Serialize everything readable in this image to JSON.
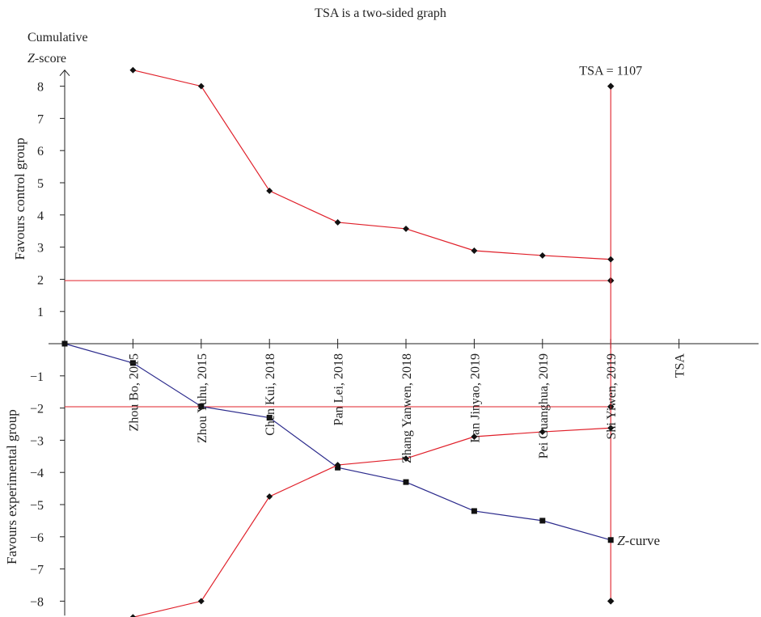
{
  "chart_data": {
    "type": "line",
    "title": "TSA is a two-sided graph",
    "ylabel_top_1": "Cumulative",
    "ylabel_top_2_italic": "Z",
    "ylabel_top_2_rest": "-score",
    "ylabel_upper": "Favours control group",
    "ylabel_lower": "Favours experimental group",
    "ylim": [
      -8.5,
      8.5
    ],
    "yticks": [
      8,
      7,
      6,
      5,
      4,
      3,
      2,
      1,
      -1,
      -2,
      -3,
      -4,
      -5,
      -6,
      -7,
      -8
    ],
    "categories": [
      "Zhou Bo, 2015",
      "Zhou Yuhu, 2015",
      "Chen Kui, 2018",
      "Pan Lei, 2018",
      "Zhang Yanwen, 2018",
      "Lan Jinyao, 2019",
      "Pei Guanghua, 2019",
      "Shi Yiwen, 2019",
      "TSA"
    ],
    "tsa_label": "TSA = 1107",
    "zcurve_label_italic": "Z",
    "zcurve_label_rest": "-curve",
    "colors": {
      "boundary": "#e0202a",
      "zcurve": "#2b2a8c",
      "axis": "#222222",
      "marker": "#111111"
    },
    "series": [
      {
        "name": "Z-curve",
        "x": [
          0,
          1,
          2,
          3,
          4,
          5,
          6,
          7,
          8
        ],
        "values": [
          0,
          -0.6,
          -1.95,
          -2.3,
          -3.85,
          -4.3,
          -5.2,
          -5.5,
          -6.1
        ]
      },
      {
        "name": "",
        "x": [
          1,
          2,
          3,
          4,
          5,
          6,
          7,
          8
        ],
        "values": [
          8.5,
          8.0,
          4.75,
          3.77,
          3.57,
          2.89,
          2.74,
          2.62
        ]
      },
      {
        "name": "",
        "x": [
          1,
          2,
          3,
          4,
          5,
          6,
          7,
          8
        ],
        "values": [
          -8.5,
          -8.0,
          -4.75,
          -3.77,
          -3.57,
          -2.89,
          -2.74,
          -2.62
        ]
      }
    ],
    "conventional_boundaries": [
      1.96,
      -1.96
    ],
    "tsa_x": 9,
    "tsa_range": [
      -8,
      8
    ]
  }
}
